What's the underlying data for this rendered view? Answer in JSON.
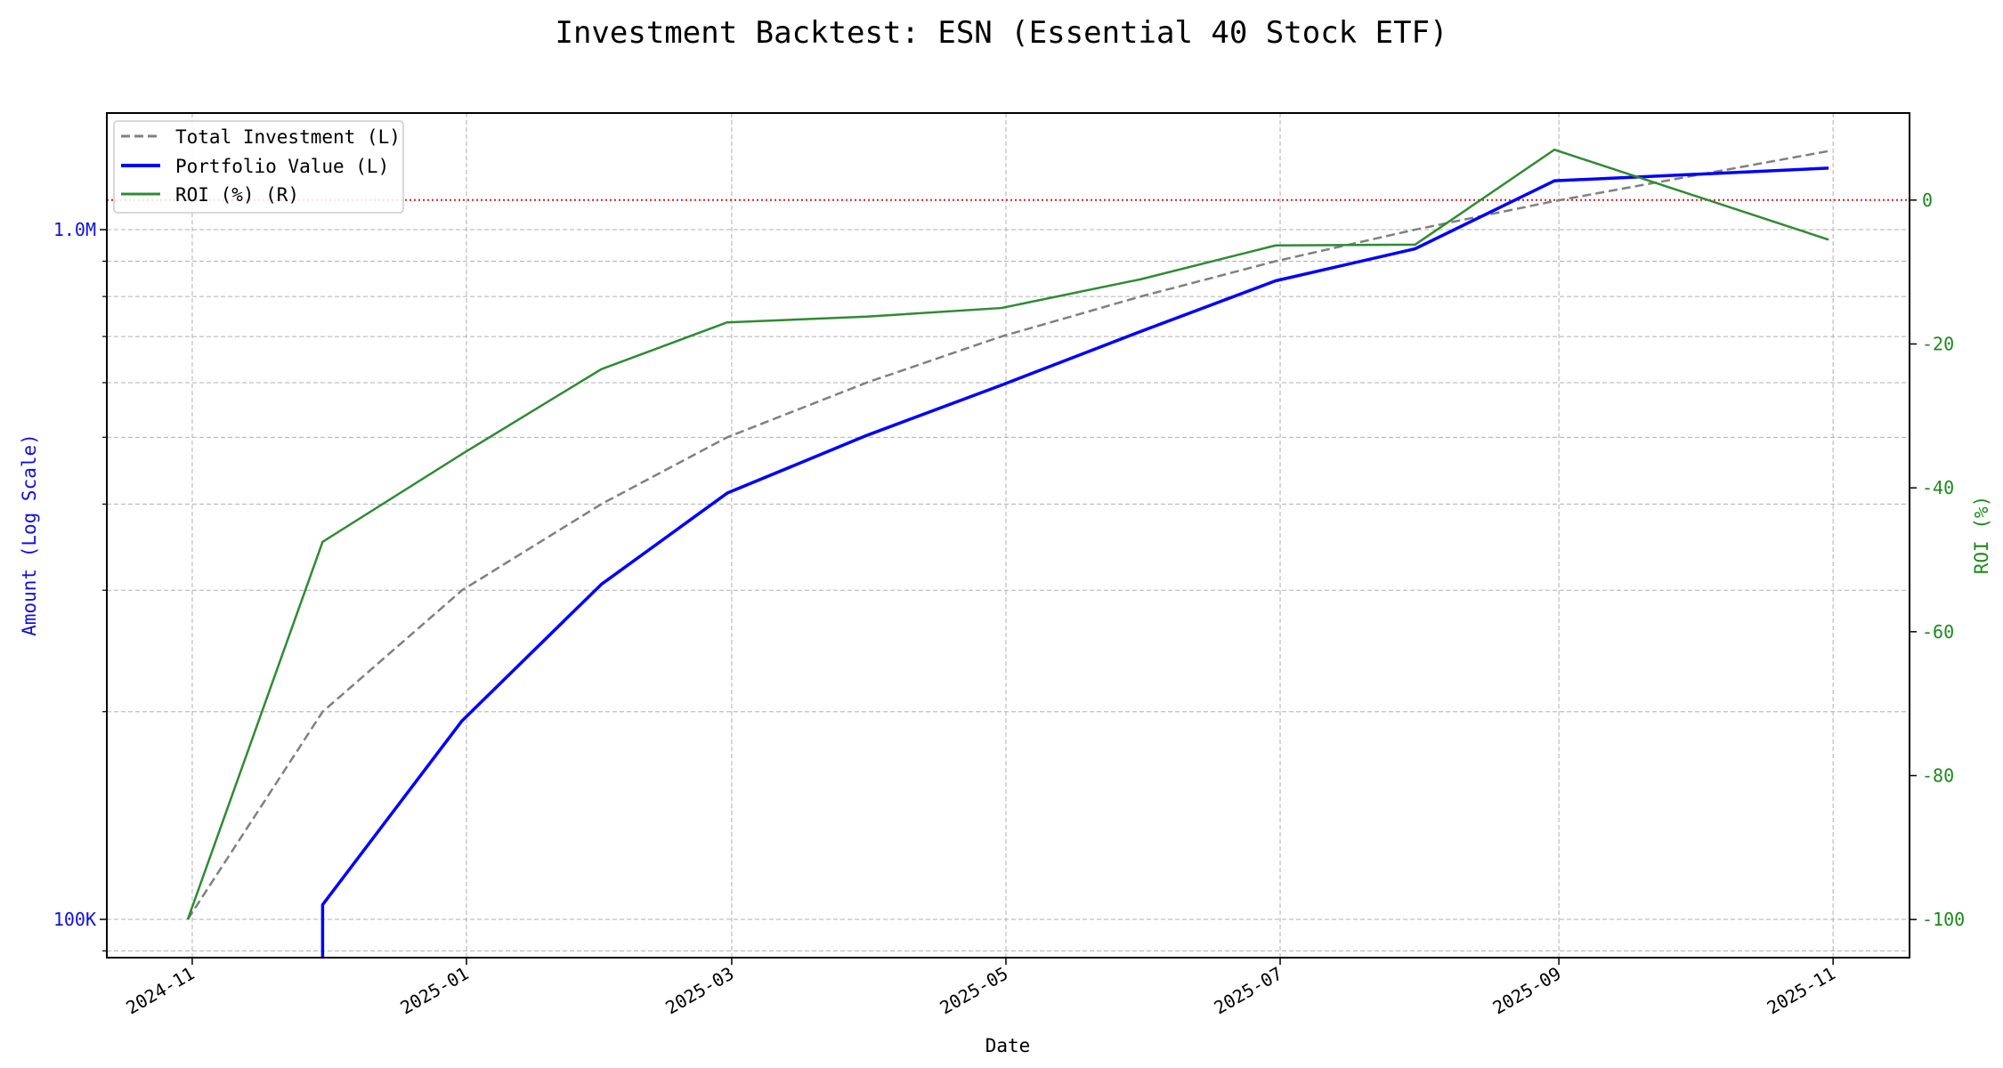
{
  "chart_data": {
    "type": "line",
    "title": "Investment Backtest: ESN (Essential 40 Stock ETF)",
    "xlabel": "Date",
    "ylabel_left": "Amount (Log Scale)",
    "ylabel_right": "ROI (%)",
    "x_ticks": [
      "2024-11",
      "2025-01",
      "2025-03",
      "2025-05",
      "2025-07",
      "2025-09",
      "2025-11"
    ],
    "xlim": [
      "2024-10-13",
      "2025-11-18"
    ],
    "y_left": {
      "scale": "log",
      "ylim": [
        88000,
        1476000
      ],
      "major_ticks": [
        100000,
        1000000
      ],
      "tick_labels": [
        "100K",
        "1.0M"
      ],
      "minor_ticks": [
        90000,
        200000,
        300000,
        400000,
        500000,
        600000,
        700000,
        800000,
        900000
      ]
    },
    "y_right": {
      "scale": "linear",
      "ylim": [
        -105.3,
        12.1
      ],
      "ticks": [
        0,
        -20,
        -40,
        -60,
        -80,
        -100
      ],
      "tick_labels": [
        "0",
        "-20",
        "-40",
        "-60",
        "-80",
        "-100"
      ]
    },
    "grid": true,
    "reference_line": {
      "axis": "right",
      "value": 0,
      "color": "#d62020",
      "style": "dotted"
    },
    "legend": {
      "placement": "top-left"
    },
    "x": [
      "2024-10-31",
      "2024-11-30",
      "2024-12-31",
      "2025-01-31",
      "2025-02-28",
      "2025-03-31",
      "2025-04-30",
      "2025-05-31",
      "2025-06-30",
      "2025-07-31",
      "2025-08-31",
      "2025-10-31"
    ],
    "series": [
      {
        "name": "Total Investment (L)",
        "axis": "left",
        "color": "#808080",
        "style": "dashed",
        "values": [
          100000,
          200000,
          300000,
          400000,
          500000,
          600000,
          700000,
          800000,
          900000,
          1000000,
          1100000,
          1300000
        ]
      },
      {
        "name": "Portfolio Value (L)",
        "axis": "left",
        "color": "#0000ff",
        "style": "solid",
        "values": [
          0,
          105000,
          194000,
          306000,
          415000,
          503000,
          595000,
          712000,
          843000,
          938000,
          1177000,
          1228000
        ]
      },
      {
        "name": "ROI (%) (R)",
        "axis": "right",
        "color": "#2e8b33",
        "style": "solid",
        "values": [
          -100,
          -47.5,
          -35.3,
          -23.5,
          -17,
          -16.2,
          -15,
          -11,
          -6.3,
          -6.2,
          7,
          -5.5
        ]
      }
    ],
    "axis_colors": {
      "left": "#1010e0",
      "right": "#1a8a1a"
    }
  }
}
